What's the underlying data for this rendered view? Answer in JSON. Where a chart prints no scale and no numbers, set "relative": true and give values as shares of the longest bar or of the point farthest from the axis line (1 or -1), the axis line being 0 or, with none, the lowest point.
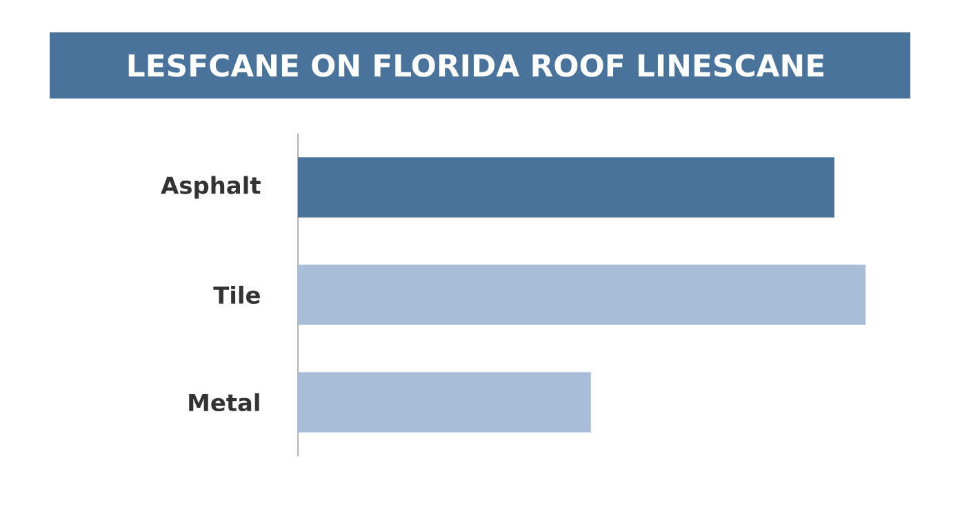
{
  "chart_data": {
    "type": "bar",
    "orientation": "horizontal",
    "relative": true,
    "title": "LESFCANE ON FLORIDA ROOF LINESCANE",
    "categories": [
      "Asphalt",
      "Tile",
      "Metal"
    ],
    "values": [
      0.945,
      1,
      0.516
    ],
    "colors": [
      "#4a739c",
      "#a8bed6",
      "#a8bed6"
    ]
  }
}
